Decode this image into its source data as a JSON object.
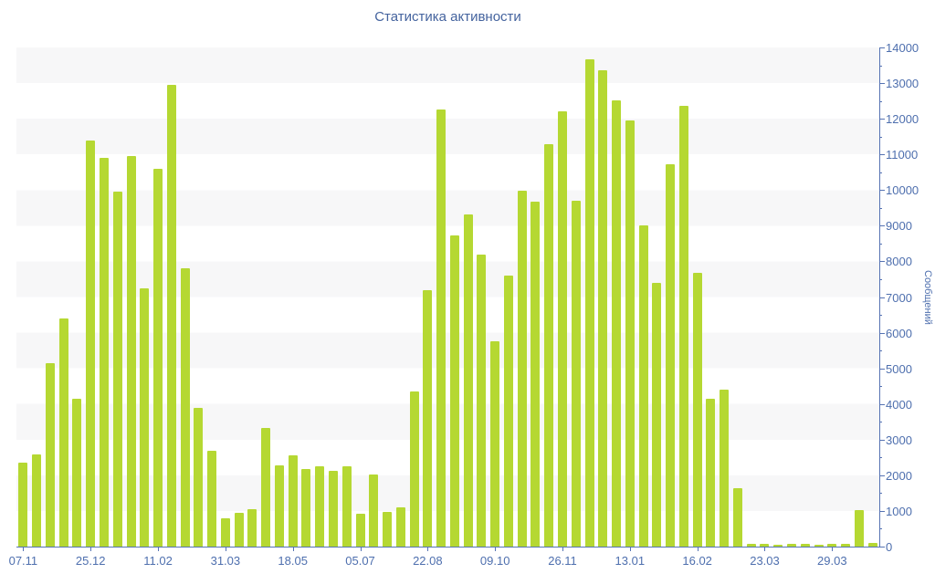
{
  "title": "Статистика активности",
  "y_axis": {
    "label": "Сообщений",
    "tick_labels": [
      "0",
      "1000",
      "2000",
      "3000",
      "4000",
      "5000",
      "6000",
      "7000",
      "8000",
      "9000",
      "10000",
      "11000",
      "12000",
      "13000",
      "14000"
    ]
  },
  "x_axis": {
    "tick_labels": [
      "07.11",
      "25.12",
      "11.02",
      "31.03",
      "18.05",
      "05.07",
      "22.08",
      "09.10",
      "26.11",
      "13.01",
      "16.02",
      "23.03",
      "29.03"
    ],
    "tick_every": 5
  },
  "chart_data": {
    "type": "bar",
    "title": "Статистика активности",
    "xlabel": "",
    "ylabel": "Сообщений",
    "ylim": [
      0,
      14000
    ],
    "y_major_step": 1000,
    "y_minor_step": 500,
    "grid": "alternating horizontal bands (white / light gray per 1000)",
    "legend_position": "none",
    "x_tick_every": 5,
    "x_tick_labels": [
      "07.11",
      "25.12",
      "11.02",
      "31.03",
      "18.05",
      "05.07",
      "22.08",
      "09.10",
      "26.11",
      "13.01",
      "16.02",
      "23.03",
      "29.03"
    ],
    "values": [
      2350,
      2590,
      5150,
      6400,
      4150,
      11400,
      10900,
      9950,
      10950,
      7250,
      10600,
      12950,
      7800,
      3900,
      2700,
      790,
      960,
      1040,
      3330,
      2270,
      2560,
      2180,
      2260,
      2130,
      2260,
      920,
      2030,
      980,
      1090,
      4350,
      7200,
      12250,
      8740,
      9320,
      8180,
      5770,
      7590,
      9970,
      9670,
      11300,
      12200,
      9700,
      13680,
      13360,
      12510,
      11950,
      9010,
      7400,
      10730,
      12350,
      7690,
      4150,
      4400,
      1640,
      70,
      80,
      60,
      80,
      70,
      60,
      70,
      80,
      1030,
      90
    ]
  },
  "colors": {
    "bar": "#b5d832",
    "band": "#f7f7f8",
    "axis": "#5673b3",
    "tick_text": "#4e6fae",
    "title_text": "#44639e",
    "background": "#ffffff"
  }
}
